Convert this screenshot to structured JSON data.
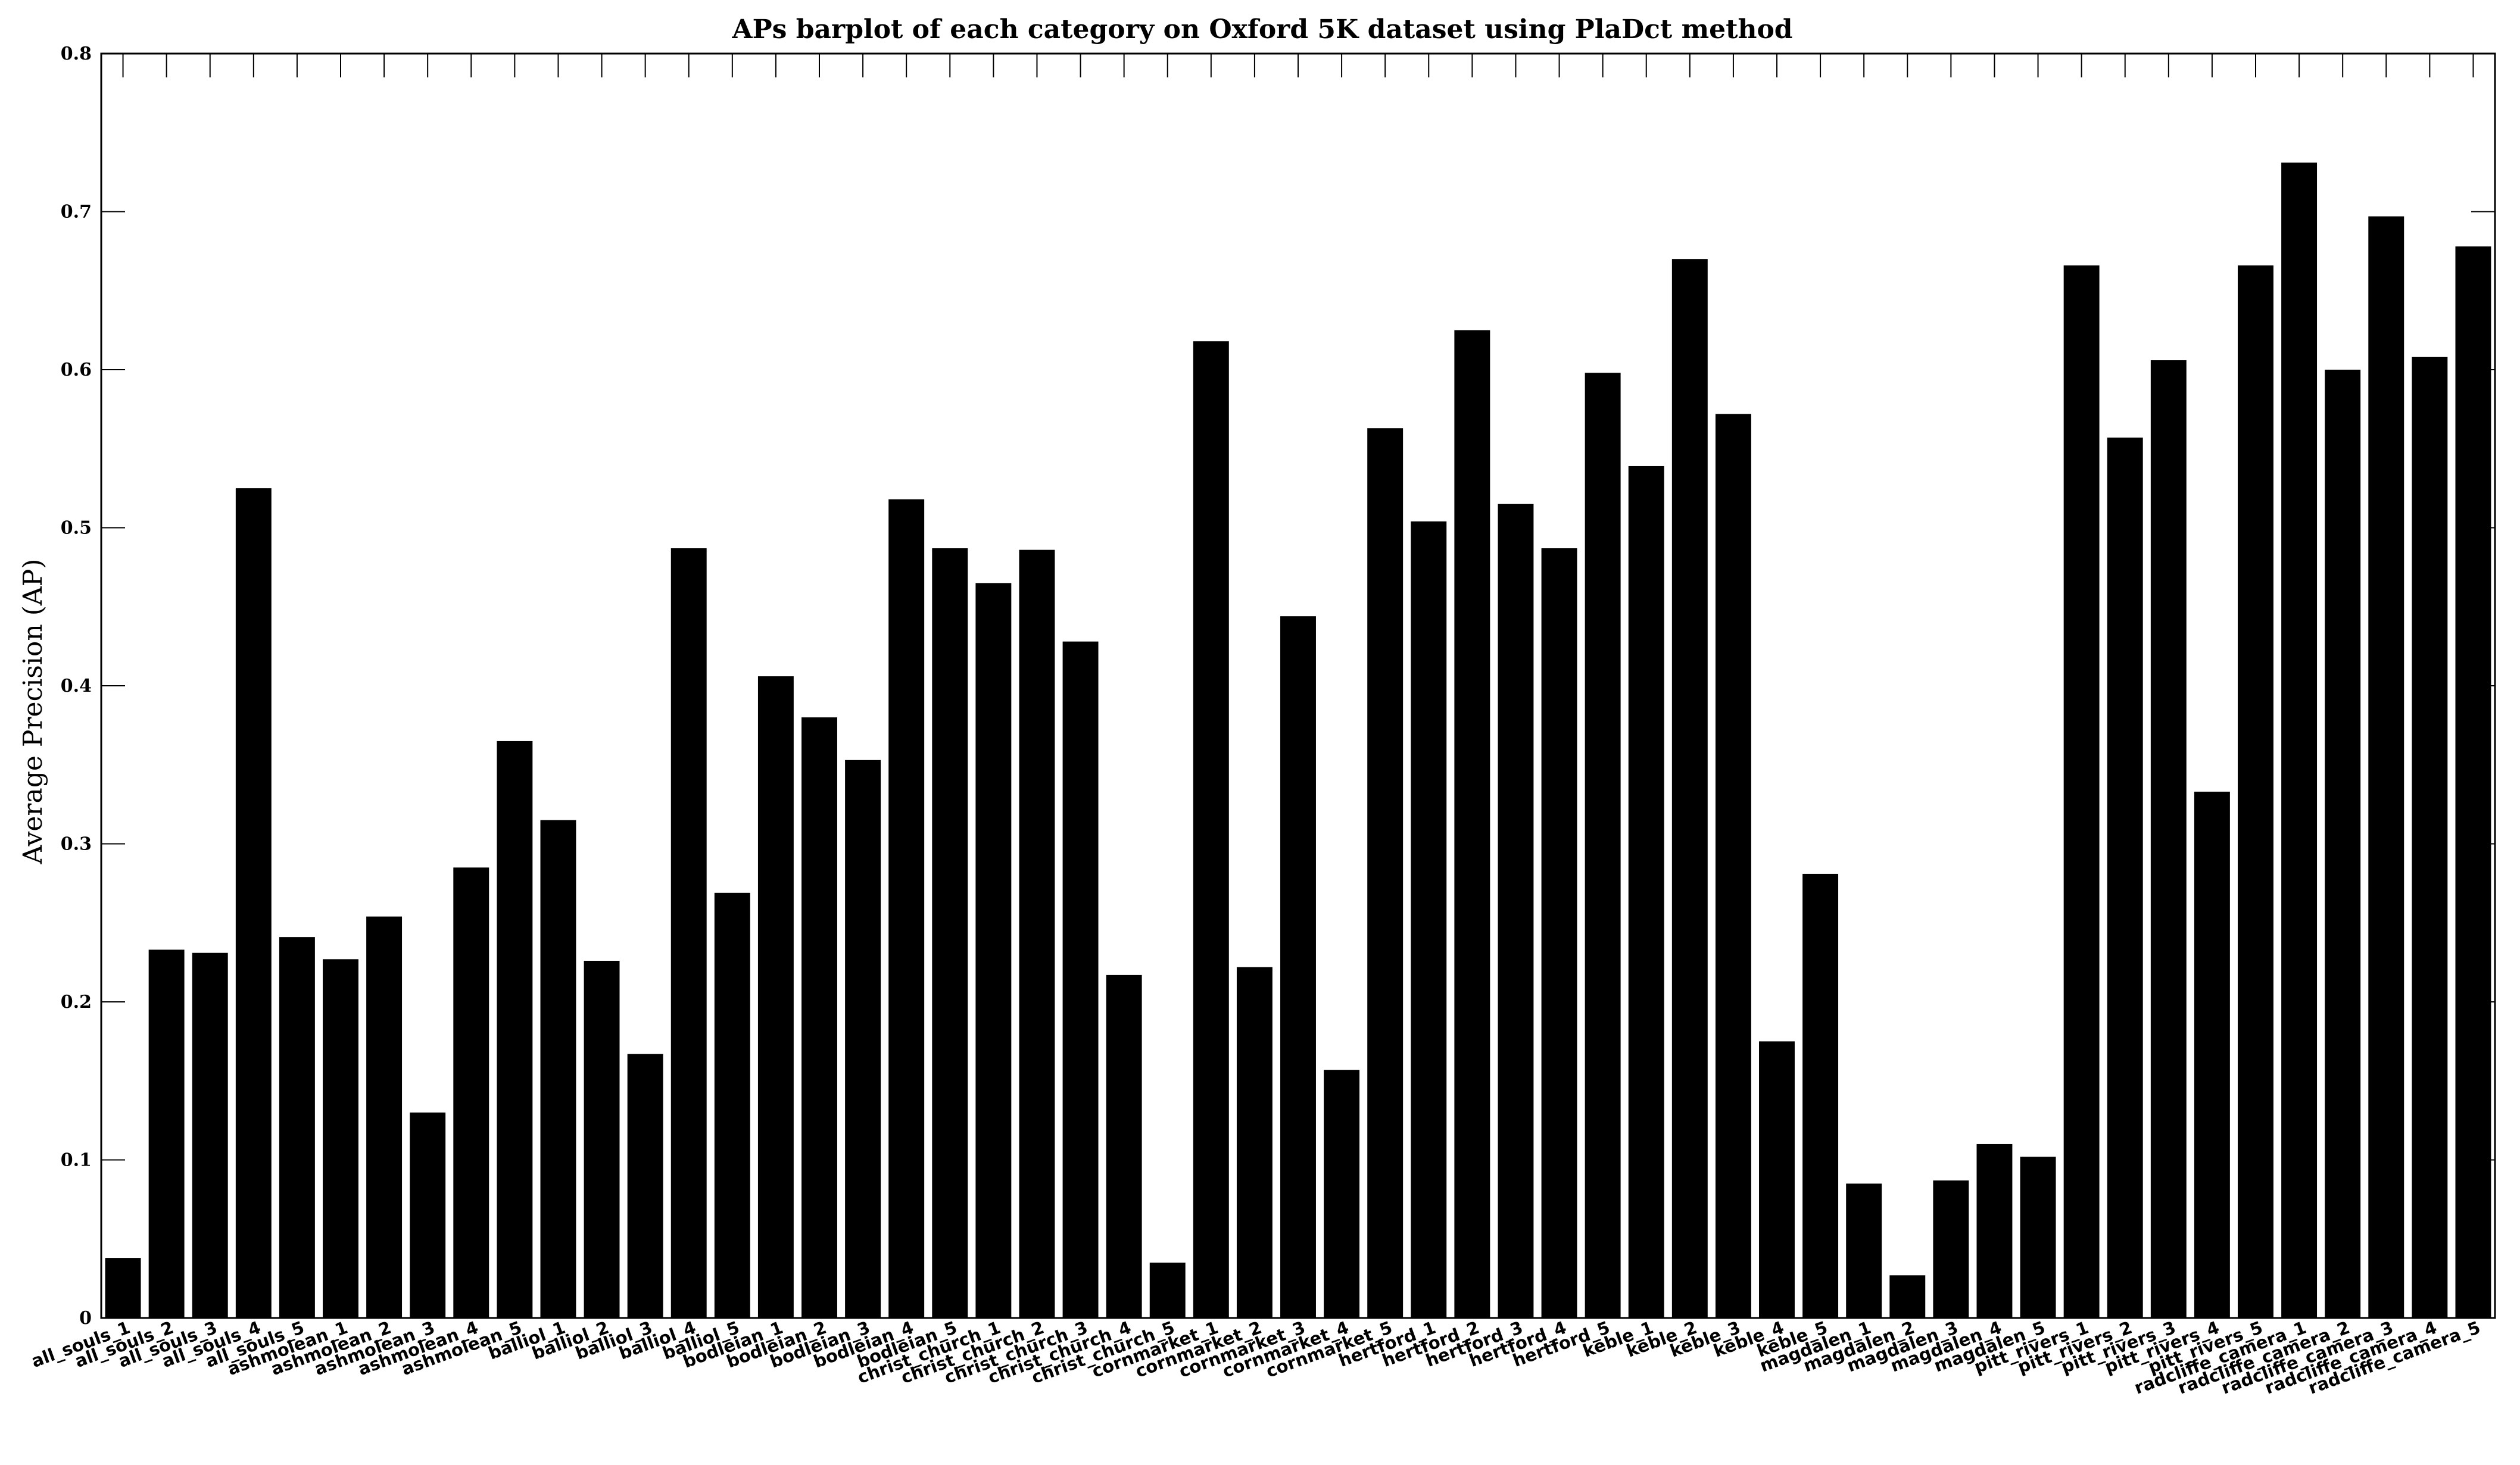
{
  "chart_data": {
    "type": "bar",
    "title": "APs barplot of each category on Oxford 5K dataset using PlaDct method",
    "xlabel": "",
    "ylabel": "Average Precision (AP)",
    "ylim": [
      0,
      0.8
    ],
    "yticks": [
      0,
      0.1,
      0.2,
      0.3,
      0.4,
      0.5,
      0.6,
      0.7,
      0.8
    ],
    "ytick_labels": [
      "0",
      "0.1",
      "0.2",
      "0.3",
      "0.4",
      "0.5",
      "0.6",
      "0.7",
      "0.8"
    ],
    "grid": false,
    "legend": "none",
    "bar_color": "#000000",
    "categories": [
      "all_souls_1",
      "all_souls_2",
      "all_souls_3",
      "all_souls_4",
      "all_souls_5",
      "ashmolean_1",
      "ashmolean_2",
      "ashmolean_3",
      "ashmolean_4",
      "ashmolean_5",
      "balliol_1",
      "balliol_2",
      "balliol_3",
      "balliol_4",
      "balliol_5",
      "bodleian_1",
      "bodleian_2",
      "bodleian_3",
      "bodleian_4",
      "bodleian_5",
      "christ_church_1",
      "christ_church_2",
      "christ_church_3",
      "christ_church_4",
      "christ_church_5",
      "cornmarket_1",
      "cornmarket_2",
      "cornmarket_3",
      "cornmarket_4",
      "cornmarket_5",
      "hertford_1",
      "hertford_2",
      "hertford_3",
      "hertford_4",
      "hertford_5",
      "keble_1",
      "keble_2",
      "keble_3",
      "keble_4",
      "keble_5",
      "magdalen_1",
      "magdalen_2",
      "magdalen_3",
      "magdalen_4",
      "magdalen_5",
      "pitt_rivers_1",
      "pitt_rivers_2",
      "pitt_rivers_3",
      "pitt_rivers_4",
      "pitt_rivers_5",
      "radcliffe_camera_1",
      "radcliffe_camera_2",
      "radcliffe_camera_3",
      "radcliffe_camera_4",
      "radcliffe_camera_5"
    ],
    "values": [
      0.038,
      0.233,
      0.231,
      0.525,
      0.241,
      0.227,
      0.254,
      0.13,
      0.285,
      0.365,
      0.315,
      0.226,
      0.167,
      0.487,
      0.269,
      0.406,
      0.38,
      0.353,
      0.518,
      0.487,
      0.465,
      0.486,
      0.428,
      0.217,
      0.035,
      0.618,
      0.222,
      0.444,
      0.157,
      0.563,
      0.504,
      0.625,
      0.515,
      0.487,
      0.598,
      0.539,
      0.67,
      0.572,
      0.175,
      0.281,
      0.085,
      0.027,
      0.087,
      0.11,
      0.102,
      0.666,
      0.557,
      0.606,
      0.333,
      0.666,
      0.731,
      0.6,
      0.697,
      0.608,
      0.678
    ]
  }
}
